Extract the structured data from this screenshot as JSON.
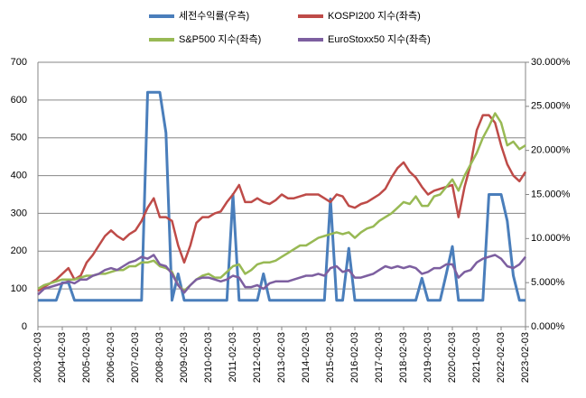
{
  "chart_data": {
    "type": "line",
    "x": [
      "2003-02-03",
      "2003-05-03",
      "2003-08-03",
      "2003-11-03",
      "2004-02-03",
      "2004-05-03",
      "2004-08-03",
      "2004-11-03",
      "2005-02-03",
      "2005-05-03",
      "2005-08-03",
      "2005-11-03",
      "2006-02-03",
      "2006-05-03",
      "2006-08-03",
      "2006-11-03",
      "2007-02-03",
      "2007-05-03",
      "2007-08-03",
      "2007-11-03",
      "2008-02-03",
      "2008-05-03",
      "2008-08-03",
      "2008-11-03",
      "2009-02-03",
      "2009-05-03",
      "2009-08-03",
      "2009-11-03",
      "2010-02-03",
      "2010-05-03",
      "2010-08-03",
      "2010-11-03",
      "2011-02-03",
      "2011-05-03",
      "2011-08-03",
      "2011-11-03",
      "2012-02-03",
      "2012-05-03",
      "2012-08-03",
      "2012-11-03",
      "2013-02-03",
      "2013-05-03",
      "2013-08-03",
      "2013-11-03",
      "2014-02-03",
      "2014-05-03",
      "2014-08-03",
      "2014-11-03",
      "2015-02-03",
      "2015-05-03",
      "2015-08-03",
      "2015-11-03",
      "2016-02-03",
      "2016-05-03",
      "2016-08-03",
      "2016-11-03",
      "2017-02-03",
      "2017-05-03",
      "2017-08-03",
      "2017-11-03",
      "2018-02-03",
      "2018-05-03",
      "2018-08-03",
      "2018-11-03",
      "2019-02-03",
      "2019-05-03",
      "2019-08-03",
      "2019-11-03",
      "2020-02-03",
      "2020-05-03",
      "2020-08-03",
      "2020-11-03",
      "2021-02-03",
      "2021-05-03",
      "2021-08-03",
      "2021-11-03",
      "2022-02-03",
      "2022-05-03",
      "2022-08-03",
      "2022-11-03",
      "2023-02-03"
    ],
    "xticks": [
      "2003-02-03",
      "2004-02-03",
      "2005-02-03",
      "2006-02-03",
      "2007-02-03",
      "2008-02-03",
      "2009-02-03",
      "2010-02-03",
      "2011-02-03",
      "2012-02-03",
      "2013-02-03",
      "2014-02-03",
      "2015-02-03",
      "2016-02-03",
      "2017-02-03",
      "2018-02-03",
      "2019-02-03",
      "2020-02-03",
      "2021-02-03",
      "2022-02-03",
      "2023-02-03"
    ],
    "ylim": [
      0,
      700
    ],
    "yticks": [
      0,
      100,
      200,
      300,
      400,
      500,
      600,
      700
    ],
    "y2lim": [
      0,
      30
    ],
    "y2ticks": [
      {
        "value": 0,
        "label": "0.000%"
      },
      {
        "value": 5,
        "label": "5.000%"
      },
      {
        "value": 10,
        "label": "10.000%"
      },
      {
        "value": 15,
        "label": "15.000%"
      },
      {
        "value": 20,
        "label": "20.000%"
      },
      {
        "value": 25,
        "label": "25.000%"
      },
      {
        "value": 30,
        "label": "30.000%"
      }
    ],
    "grid": true,
    "series": [
      {
        "name": "세전수익률(우측)",
        "color": "#4a7ebb",
        "axis": "y2",
        "values": [
          3,
          3,
          3,
          3,
          5,
          5,
          3,
          3,
          3,
          3,
          3,
          3,
          3,
          3,
          3,
          3,
          3,
          3,
          26.6,
          26.6,
          26.6,
          22,
          3,
          6,
          3,
          3,
          3,
          3,
          3,
          3,
          3,
          3,
          15,
          3,
          3,
          3,
          3,
          6,
          3,
          3,
          3,
          3,
          3,
          3,
          3,
          3,
          3,
          3,
          14.5,
          3,
          3,
          8.9,
          3,
          3,
          3,
          3,
          3,
          3,
          3,
          3,
          3,
          3,
          3,
          5.5,
          3,
          3,
          3,
          6,
          9.1,
          3,
          3,
          3,
          3,
          3,
          15,
          15,
          15,
          12,
          5.8,
          3,
          3
        ]
      },
      {
        "name": "KOSPI200 지수(좌측)",
        "color": "#be4b48",
        "values": [
          95,
          105,
          115,
          125,
          140,
          155,
          125,
          135,
          170,
          190,
          215,
          240,
          255,
          240,
          230,
          245,
          255,
          280,
          315,
          340,
          290,
          290,
          280,
          215,
          170,
          215,
          275,
          290,
          290,
          300,
          305,
          330,
          350,
          375,
          330,
          330,
          340,
          330,
          325,
          335,
          350,
          340,
          340,
          345,
          350,
          350,
          350,
          340,
          330,
          350,
          345,
          320,
          315,
          325,
          330,
          340,
          350,
          365,
          395,
          420,
          435,
          410,
          395,
          370,
          350,
          360,
          365,
          370,
          375,
          290,
          370,
          430,
          520,
          560,
          560,
          540,
          480,
          430,
          400,
          385,
          410
        ]
      },
      {
        "name": "S&P500 지수(좌측)",
        "color": "#98b954",
        "values": [
          100,
          110,
          115,
          120,
          125,
          125,
          125,
          130,
          135,
          135,
          140,
          140,
          145,
          150,
          150,
          160,
          160,
          170,
          170,
          175,
          160,
          155,
          145,
          110,
          95,
          110,
          125,
          135,
          140,
          130,
          130,
          145,
          160,
          165,
          140,
          150,
          165,
          170,
          170,
          175,
          185,
          195,
          205,
          215,
          215,
          225,
          235,
          240,
          245,
          250,
          245,
          250,
          235,
          250,
          260,
          265,
          280,
          290,
          300,
          315,
          330,
          325,
          345,
          320,
          320,
          345,
          350,
          370,
          390,
          360,
          400,
          430,
          460,
          500,
          530,
          565,
          540,
          480,
          490,
          470,
          480
        ]
      },
      {
        "name": "EuroStoxx50 지수(좌측)",
        "color": "#7d5fa0",
        "values": [
          85,
          100,
          105,
          110,
          115,
          120,
          115,
          125,
          125,
          135,
          140,
          150,
          155,
          150,
          160,
          170,
          175,
          185,
          180,
          190,
          165,
          160,
          140,
          110,
          90,
          110,
          125,
          130,
          130,
          125,
          120,
          125,
          135,
          130,
          105,
          105,
          110,
          100,
          115,
          120,
          120,
          120,
          125,
          130,
          135,
          135,
          140,
          135,
          155,
          160,
          145,
          150,
          130,
          130,
          135,
          140,
          150,
          160,
          155,
          160,
          155,
          160,
          155,
          140,
          145,
          155,
          155,
          165,
          165,
          130,
          145,
          150,
          170,
          180,
          185,
          190,
          180,
          160,
          155,
          165,
          185
        ]
      }
    ]
  }
}
